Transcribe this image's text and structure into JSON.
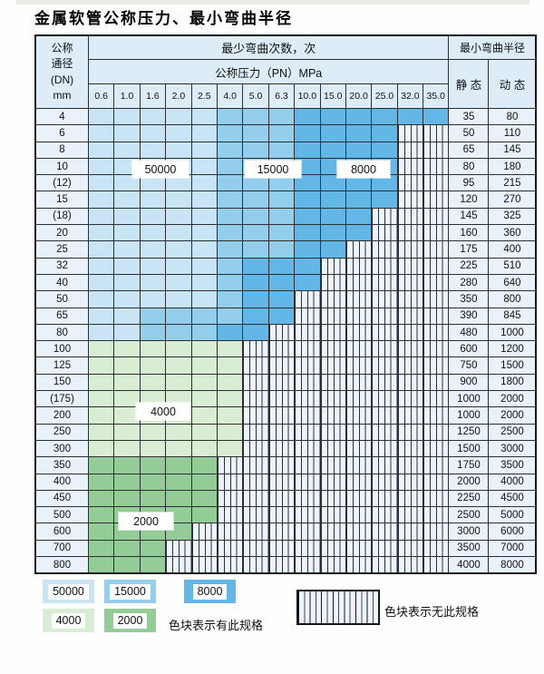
{
  "title": "金属软管公称压力、最小弯曲半径",
  "table": {
    "header": {
      "dn_lines": [
        "公称",
        "通径",
        "(DN)",
        "mm"
      ],
      "bend_times": "最少弯曲次数，次",
      "pressure": "公称压力（PN）MPa",
      "radius": "最小弯曲半径",
      "static": "静 态",
      "dynamic": "动 态",
      "pressures": [
        "0.6",
        "1.0",
        "1.6",
        "2.0",
        "2.5",
        "4.0",
        "5.0",
        "6.3",
        "10.0",
        "15.0",
        "20.0",
        "25.0",
        "32.0",
        "35.0"
      ]
    },
    "cell_code_key": {
      "L": "50000 cycles zone (light blue)",
      "M": "15000 cycles zone (medium blue)",
      "D": "8000 cycles zone (dark blue)",
      "G": "4000 cycles zone (light green)",
      "g": "2000 cycles zone (medium green)",
      "H": "no specification (hatched)"
    },
    "rows": [
      {
        "dn": "4",
        "cells": "LLLLLMMMDDDDDD",
        "static": "35",
        "dynamic": "80"
      },
      {
        "dn": "6",
        "cells": "LLLLLMMMDDDDHH",
        "static": "50",
        "dynamic": "110"
      },
      {
        "dn": "8",
        "cells": "LLLLLMMMDDDDHH",
        "static": "65",
        "dynamic": "145"
      },
      {
        "dn": "10",
        "cells": "LLLLLMMMDDDDHH",
        "static": "80",
        "dynamic": "180"
      },
      {
        "dn": "(12)",
        "cells": "LLLLLMMMDDDDHH",
        "static": "95",
        "dynamic": "215"
      },
      {
        "dn": "15",
        "cells": "LLLLLMMMDDDDHH",
        "static": "120",
        "dynamic": "270"
      },
      {
        "dn": "(18)",
        "cells": "LLLLLMMMDDDHHH",
        "static": "145",
        "dynamic": "325"
      },
      {
        "dn": "20",
        "cells": "LLLLLMMMDDDHHH",
        "static": "160",
        "dynamic": "360"
      },
      {
        "dn": "25",
        "cells": "LLLLLMMMDDHHHH",
        "static": "175",
        "dynamic": "400"
      },
      {
        "dn": "32",
        "cells": "LLLLLMDDDHHHHH",
        "static": "225",
        "dynamic": "510"
      },
      {
        "dn": "40",
        "cells": "LLLLLMDDDHHHHH",
        "static": "280",
        "dynamic": "640"
      },
      {
        "dn": "50",
        "cells": "LLLLLMDDHHHHHH",
        "static": "350",
        "dynamic": "800"
      },
      {
        "dn": "65",
        "cells": "LLMMMMDDHHHHHH",
        "static": "390",
        "dynamic": "845"
      },
      {
        "dn": "80",
        "cells": "LLMMMDDHHHHHHH",
        "static": "480",
        "dynamic": "1000"
      },
      {
        "dn": "100",
        "cells": "GGGGGGHHHHHHHH",
        "static": "600",
        "dynamic": "1200"
      },
      {
        "dn": "125",
        "cells": "GGGGGGHHHHHHHH",
        "static": "750",
        "dynamic": "1500"
      },
      {
        "dn": "150",
        "cells": "GGGGGGHHHHHHHH",
        "static": "900",
        "dynamic": "1800"
      },
      {
        "dn": "(175)",
        "cells": "GGGGGGHHHHHHHH",
        "static": "1000",
        "dynamic": "2000"
      },
      {
        "dn": "200",
        "cells": "GGGGGGHHHHHHHH",
        "static": "1000",
        "dynamic": "2000"
      },
      {
        "dn": "250",
        "cells": "GGGGGGHHHHHHHH",
        "static": "1250",
        "dynamic": "2500"
      },
      {
        "dn": "300",
        "cells": "GGGGGGHHHHHHHH",
        "static": "1500",
        "dynamic": "3000"
      },
      {
        "dn": "350",
        "cells": "gggggHHHHHHHHH",
        "static": "1750",
        "dynamic": "3500"
      },
      {
        "dn": "400",
        "cells": "gggggHHHHHHHHH",
        "static": "2000",
        "dynamic": "4000"
      },
      {
        "dn": "450",
        "cells": "gggggHHHHHHHHH",
        "static": "2250",
        "dynamic": "4500"
      },
      {
        "dn": "500",
        "cells": "gggggHHHHHHHHH",
        "static": "2500",
        "dynamic": "5000"
      },
      {
        "dn": "600",
        "cells": "ggggHHHHHHHHHH",
        "static": "3000",
        "dynamic": "6000"
      },
      {
        "dn": "700",
        "cells": "gggHHHHHHHHHHH",
        "static": "3500",
        "dynamic": "7000"
      },
      {
        "dn": "800",
        "cells": "gggHHHHHHHHHHH",
        "static": "4000",
        "dynamic": "8000"
      }
    ]
  },
  "overlay_labels": [
    {
      "text": "50000"
    },
    {
      "text": "15000"
    },
    {
      "text": "8000"
    },
    {
      "text": "4000"
    },
    {
      "text": "2000"
    }
  ],
  "legend": {
    "swatches": [
      {
        "value": "50000"
      },
      {
        "value": "15000"
      },
      {
        "value": "8000"
      },
      {
        "value": "4000"
      },
      {
        "value": "2000"
      }
    ],
    "has_spec_text": "色块表示有此规格",
    "no_spec_text": "色块表示无此规格"
  },
  "colors": {
    "blue_light": "#c9e4f4",
    "blue_mid": "#93ceec",
    "blue_dark": "#62b7e6",
    "green_light": "#d9ecd4",
    "green_mid": "#94cc97",
    "hatch_bg": "#edf4fb",
    "grid_line": "#2b2f33",
    "header_bg": "#ddecf6",
    "label_bg": "#e9f2fa"
  }
}
